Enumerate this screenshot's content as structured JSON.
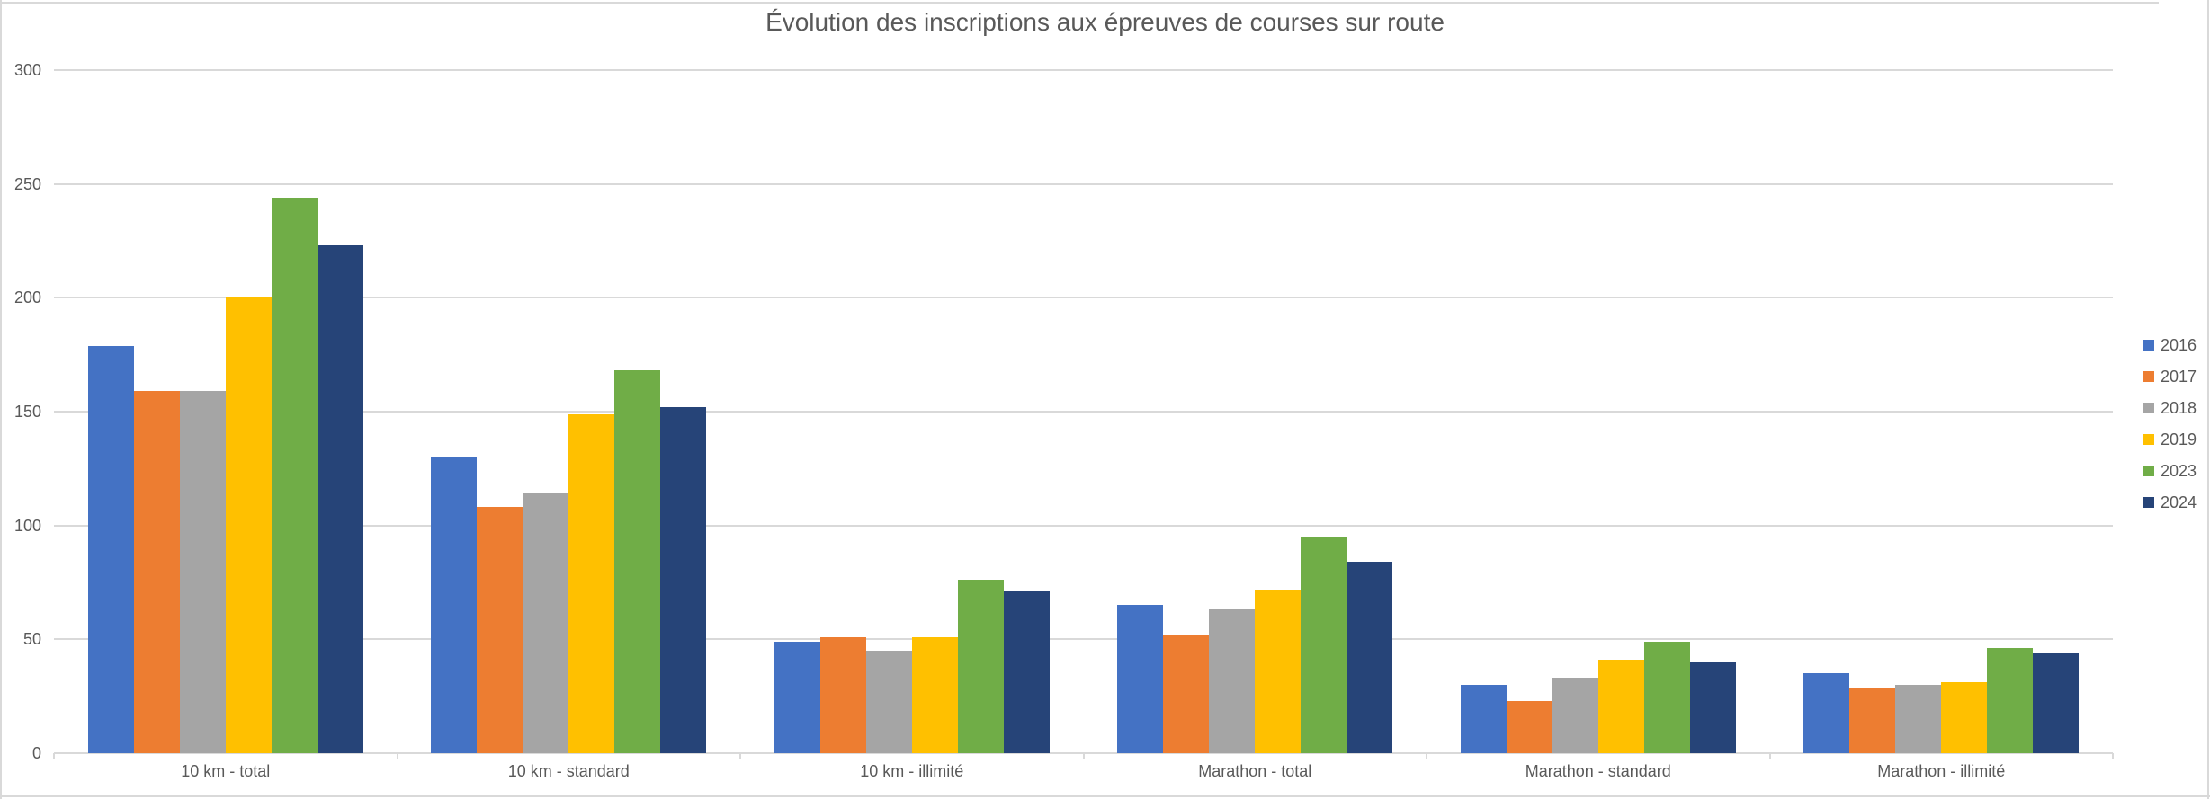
{
  "chart_data": {
    "type": "bar",
    "title": "Évolution des inscriptions aux épreuves de courses sur route",
    "categories": [
      "10 km - total",
      "10 km - standard",
      "10 km - illimité",
      "Marathon - total",
      "Marathon - standard",
      "Marathon - illimité"
    ],
    "series": [
      {
        "name": "2016",
        "color": "#4472C4",
        "values": [
          179,
          130,
          49,
          65,
          30,
          35
        ]
      },
      {
        "name": "2017",
        "color": "#ED7D31",
        "values": [
          159,
          108,
          51,
          52,
          23,
          29
        ]
      },
      {
        "name": "2018",
        "color": "#A5A5A5",
        "values": [
          159,
          114,
          45,
          63,
          33,
          30
        ]
      },
      {
        "name": "2019",
        "color": "#FFC000",
        "values": [
          200,
          149,
          51,
          72,
          41,
          31
        ]
      },
      {
        "name": "2023",
        "color": "#70AD47",
        "values": [
          244,
          168,
          76,
          95,
          49,
          46
        ]
      },
      {
        "name": "2024",
        "color": "#264478",
        "values": [
          223,
          152,
          71,
          84,
          40,
          44
        ]
      }
    ],
    "xlabel": "",
    "ylabel": "",
    "ylim": [
      0,
      300
    ],
    "y_ticks": [
      0,
      50,
      100,
      150,
      200,
      250,
      300
    ],
    "grid": true,
    "legend_position": "right"
  },
  "styles": {
    "text_color": "#595959",
    "gridline_color": "#D9D9D9",
    "background_color": "#FFFFFF"
  }
}
